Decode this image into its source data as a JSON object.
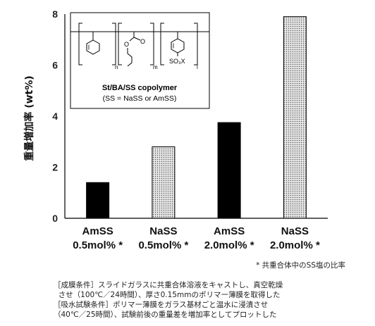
{
  "chart_data": {
    "type": "bar",
    "ylabel": "重量増加率 (wt%)",
    "ylim": [
      0,
      8
    ],
    "yticks": [
      0,
      2,
      4,
      6,
      8
    ],
    "categories": [
      {
        "line1": "AmSS",
        "line2": "0.5mol% *"
      },
      {
        "line1": "NaSS",
        "line2": "0.5mol% *"
      },
      {
        "line1": "AmSS",
        "line2": "2.0mol% *"
      },
      {
        "line1": "NaSS",
        "line2": "2.0mol% *"
      }
    ],
    "values": [
      1.4,
      2.8,
      3.75,
      7.9
    ],
    "styles": [
      "solid",
      "dotted",
      "solid",
      "dotted"
    ],
    "colors": {
      "solid": "#000000",
      "dotted_fill": "#e6e6e6",
      "dot": "#555555"
    },
    "grid": false
  },
  "inset": {
    "subscripts": [
      "n",
      "m",
      "l"
    ],
    "ester_atom": "O",
    "carbonyl_atom": "O",
    "sulfonate": "SO₃X",
    "title": "St/BA/SS copolymer",
    "subtitle": "(SS = NaSS or AmSS)"
  },
  "footnote": "* 共重合体中のSS塩の比率",
  "conditions": [
    "［成膜条件］スライドガラスに共重合体溶液をキャストし、真空乾燥",
    "  させ（100℃／24時間）、厚さ0.15mmのポリマー薄膜を取得した",
    "［吸水試験条件］ポリマー薄膜をガラス基材ごと温水に浸漬させ",
    "（40℃／25時間）、試験前後の重量差を増加率としてプロットした"
  ]
}
